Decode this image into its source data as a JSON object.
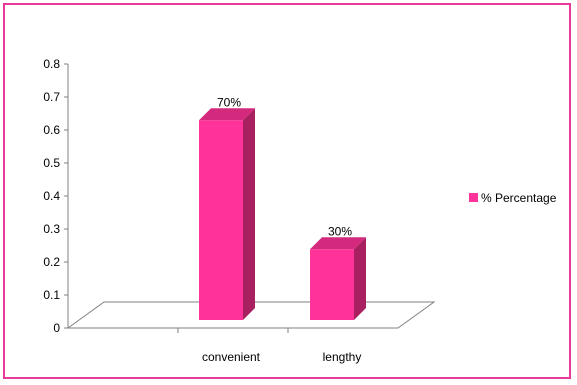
{
  "chart_data": {
    "type": "bar",
    "categories": [
      "convenient",
      "lengthy"
    ],
    "series": [
      {
        "name": "% Percentage",
        "values": [
          0.7,
          0.3
        ],
        "data_labels": [
          "70%",
          "30%"
        ]
      }
    ],
    "ylim": [
      0,
      0.8
    ],
    "yticks": [
      "0",
      "0.1",
      "0.2",
      "0.3",
      "0.4",
      "0.5",
      "0.6",
      "0.7",
      "0.8"
    ],
    "grid": false,
    "legend_position": "right",
    "style": "3d-column",
    "colors": {
      "bar_front": "#ff3399",
      "bar_side": "#a8205f",
      "bar_top": "#d42a7d",
      "border": "#e8399c",
      "axis": "#808080"
    }
  }
}
